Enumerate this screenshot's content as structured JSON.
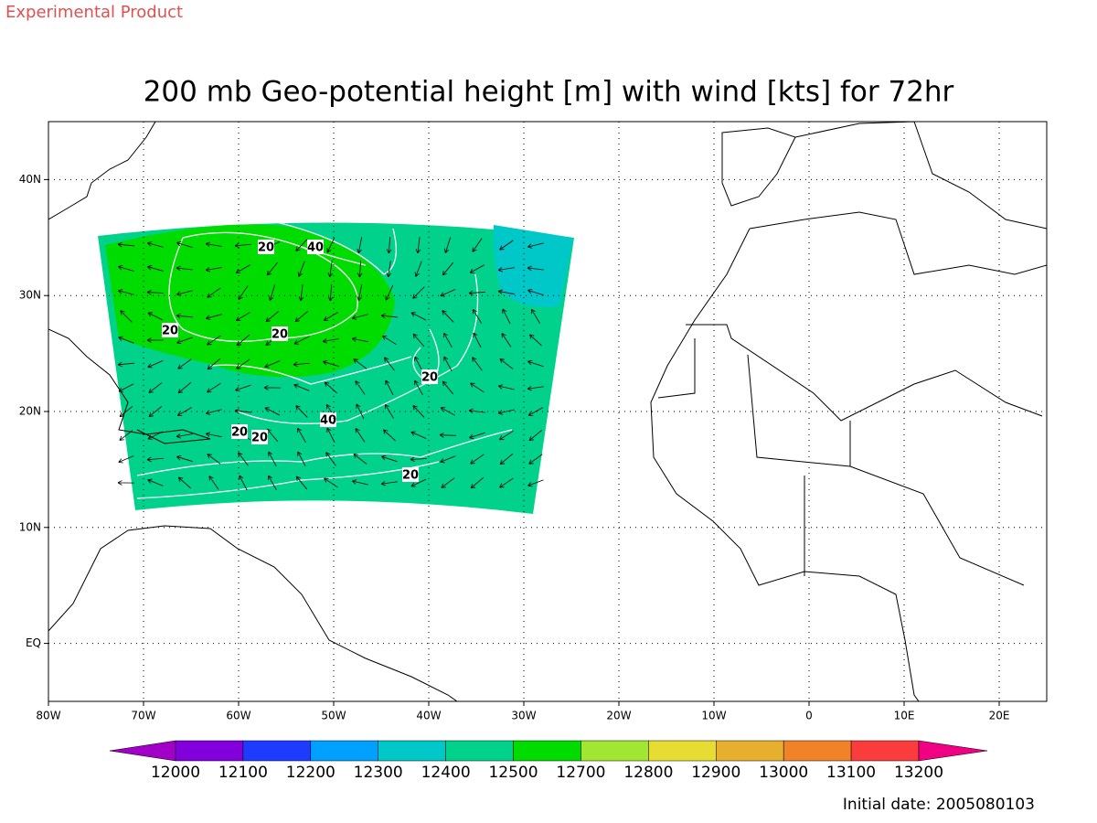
{
  "header": "Experimental Product",
  "title": "200 mb Geo-potential height [m] with wind [kts] for 72hr",
  "map": {
    "xlim": [
      -80,
      25
    ],
    "ylim": [
      -5,
      45
    ],
    "xticks": [
      {
        "value": -80,
        "label": "80W"
      },
      {
        "value": -70,
        "label": "70W"
      },
      {
        "value": -60,
        "label": "60W"
      },
      {
        "value": -50,
        "label": "50W"
      },
      {
        "value": -40,
        "label": "40W"
      },
      {
        "value": -30,
        "label": "30W"
      },
      {
        "value": -20,
        "label": "20W"
      },
      {
        "value": -10,
        "label": "10W"
      },
      0,
      {
        "value": 10,
        "label": "10E"
      },
      {
        "value": 20,
        "label": "20E"
      }
    ],
    "yticks": [
      {
        "value": 0,
        "label": "EQ"
      },
      {
        "value": 10,
        "label": "10N"
      },
      {
        "value": 20,
        "label": "20N"
      },
      {
        "value": 30,
        "label": "30N"
      },
      {
        "value": 40,
        "label": "40N"
      }
    ],
    "contour_labels": [
      "20",
      "40",
      "20",
      "20",
      "20",
      "40",
      "20",
      "20",
      "20"
    ]
  },
  "colorbar": {
    "levels": [
      12000,
      12100,
      12200,
      12300,
      12400,
      12500,
      12700,
      12800,
      12900,
      13000,
      13100,
      13200
    ],
    "colors": [
      "#a000c8",
      "#8200dc",
      "#1e3cff",
      "#00a0ff",
      "#00c8c8",
      "#00d28c",
      "#00dc00",
      "#a0e632",
      "#e6dc32",
      "#e6af2d",
      "#f08228",
      "#fa3c3c",
      "#f00082"
    ]
  },
  "footer": "Initial date: 2005080103"
}
